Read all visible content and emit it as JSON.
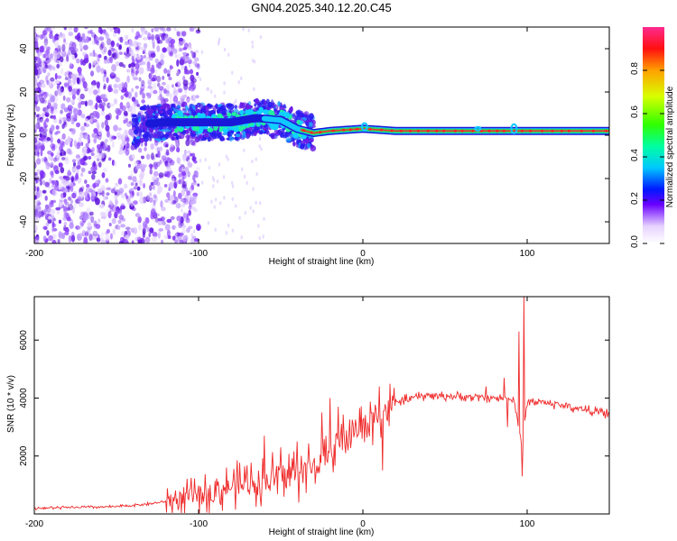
{
  "title": "GN04.2025.340.12.20.C45",
  "colors": {
    "snr_line": "#ef2929",
    "band_core": "#e8363a",
    "band_mid": "#2bd95a",
    "speckle": "#6a1ee6"
  },
  "chart_data": [
    {
      "type": "heatmap",
      "name": "spectrogram",
      "xlabel": "Height of straight line (km)",
      "ylabel": "Frequency (Hz)",
      "xlim": [
        -200,
        150
      ],
      "ylim": [
        -50,
        50
      ],
      "x_ticks": [
        -200,
        -100,
        0,
        100
      ],
      "x_tick_labels": [
        "-200",
        "-100",
        "0",
        "100"
      ],
      "y_ticks": [
        -40,
        -20,
        0,
        20,
        40
      ],
      "y_tick_labels": [
        "-40",
        "-20",
        "0",
        "20",
        "40"
      ],
      "colorbar": {
        "label": "Normalized spectral amplitude",
        "range": [
          0,
          1
        ],
        "ticks": [
          0.0,
          0.2,
          0.4,
          0.6,
          0.8
        ],
        "tick_labels": [
          "0.0",
          "0.2",
          "0.4",
          "0.6",
          "0.8"
        ]
      },
      "band_center_hz": [
        [
          -135,
          5
        ],
        [
          -120,
          6
        ],
        [
          -100,
          6
        ],
        [
          -80,
          6
        ],
        [
          -65,
          8
        ],
        [
          -50,
          7
        ],
        [
          -40,
          3
        ],
        [
          -30,
          1
        ],
        [
          -20,
          2
        ],
        [
          0,
          3
        ],
        [
          20,
          2
        ],
        [
          50,
          2
        ],
        [
          100,
          2
        ],
        [
          150,
          2
        ]
      ]
    },
    {
      "type": "line",
      "name": "snr",
      "xlabel": "Height of straight line (km)",
      "ylabel": "SNR (10 * v/v)",
      "xlim": [
        -200,
        150
      ],
      "ylim": [
        0,
        7500
      ],
      "x_ticks": [
        -200,
        -100,
        0,
        100
      ],
      "x_tick_labels": [
        "-200",
        "-100",
        "0",
        "100"
      ],
      "y_ticks": [
        2000,
        4000,
        6000
      ],
      "y_tick_labels": [
        "2000",
        "4000",
        "6000"
      ],
      "trend": [
        [
          -200,
          200
        ],
        [
          -150,
          250
        ],
        [
          -130,
          350
        ],
        [
          -110,
          500
        ],
        [
          -90,
          800
        ],
        [
          -70,
          1100
        ],
        [
          -50,
          1300
        ],
        [
          -35,
          1500
        ],
        [
          -25,
          1800
        ],
        [
          -15,
          2500
        ],
        [
          -5,
          2900
        ],
        [
          5,
          3200
        ],
        [
          15,
          3700
        ],
        [
          25,
          3950
        ],
        [
          40,
          4100
        ],
        [
          60,
          4050
        ],
        [
          80,
          4000
        ],
        [
          92,
          3950
        ],
        [
          97,
          2200
        ],
        [
          100,
          3900
        ],
        [
          110,
          3850
        ],
        [
          130,
          3650
        ],
        [
          150,
          3450
        ]
      ],
      "spikes": [
        [
          -60,
          2700
        ],
        [
          -50,
          2300
        ],
        [
          -40,
          2500
        ],
        [
          -25,
          3500
        ],
        [
          -20,
          4000
        ],
        [
          -15,
          3700
        ],
        [
          10,
          4400
        ],
        [
          12,
          1500
        ],
        [
          75,
          4400
        ],
        [
          86,
          4700
        ],
        [
          88,
          3000
        ],
        [
          95,
          6300
        ],
        [
          97,
          1300
        ],
        [
          98,
          7500
        ]
      ]
    }
  ]
}
